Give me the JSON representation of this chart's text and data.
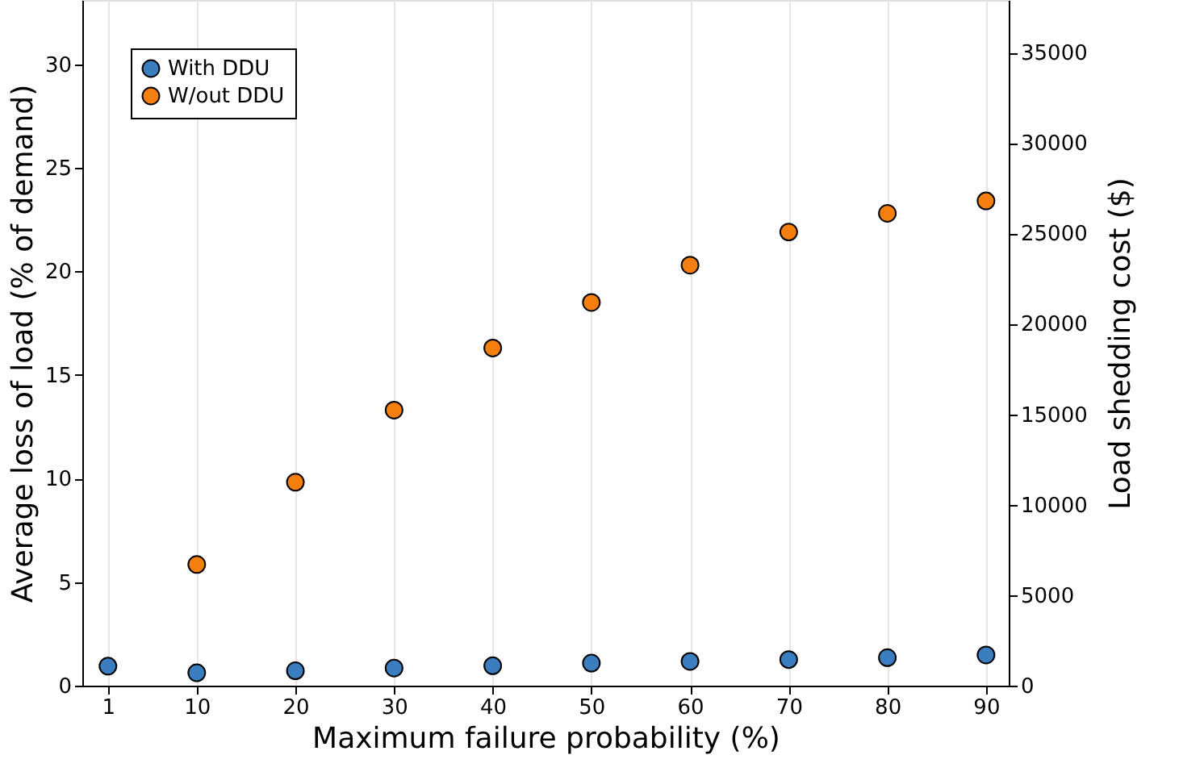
{
  "chart_data": {
    "type": "scatter",
    "xlabel": "Maximum failure probability (%)",
    "ylabel": "Average loss of load (% of demand)",
    "y2label": "Load shedding cost ($)",
    "x": [
      1,
      10,
      20,
      30,
      40,
      50,
      60,
      70,
      80,
      90
    ],
    "series": [
      {
        "name": "With DDU",
        "color": "#3a7ebf",
        "values": [
          0.94,
          0.62,
          0.72,
          0.85,
          0.96,
          1.09,
          1.17,
          1.26,
          1.35,
          1.48
        ]
      },
      {
        "name": "W/out DDU",
        "color": "#f57f0e",
        "x": [
          10,
          20,
          30,
          40,
          50,
          60,
          70,
          80,
          90
        ],
        "values": [
          5.85,
          9.82,
          13.3,
          16.3,
          18.5,
          20.3,
          21.9,
          22.8,
          23.4
        ]
      }
    ],
    "xlim": [
      -1.6,
      92.3
    ],
    "xticks": [
      1,
      10,
      20,
      30,
      40,
      50,
      60,
      70,
      80,
      90
    ],
    "ylim": [
      0,
      33.1
    ],
    "yticks": [
      0,
      5,
      10,
      15,
      20,
      25,
      30
    ],
    "y2lim": [
      0,
      37900
    ],
    "y2ticks": [
      0,
      5000,
      10000,
      15000,
      20000,
      25000,
      30000,
      35000
    ],
    "grid": "x",
    "legend": "top left",
    "marker": "circle"
  }
}
